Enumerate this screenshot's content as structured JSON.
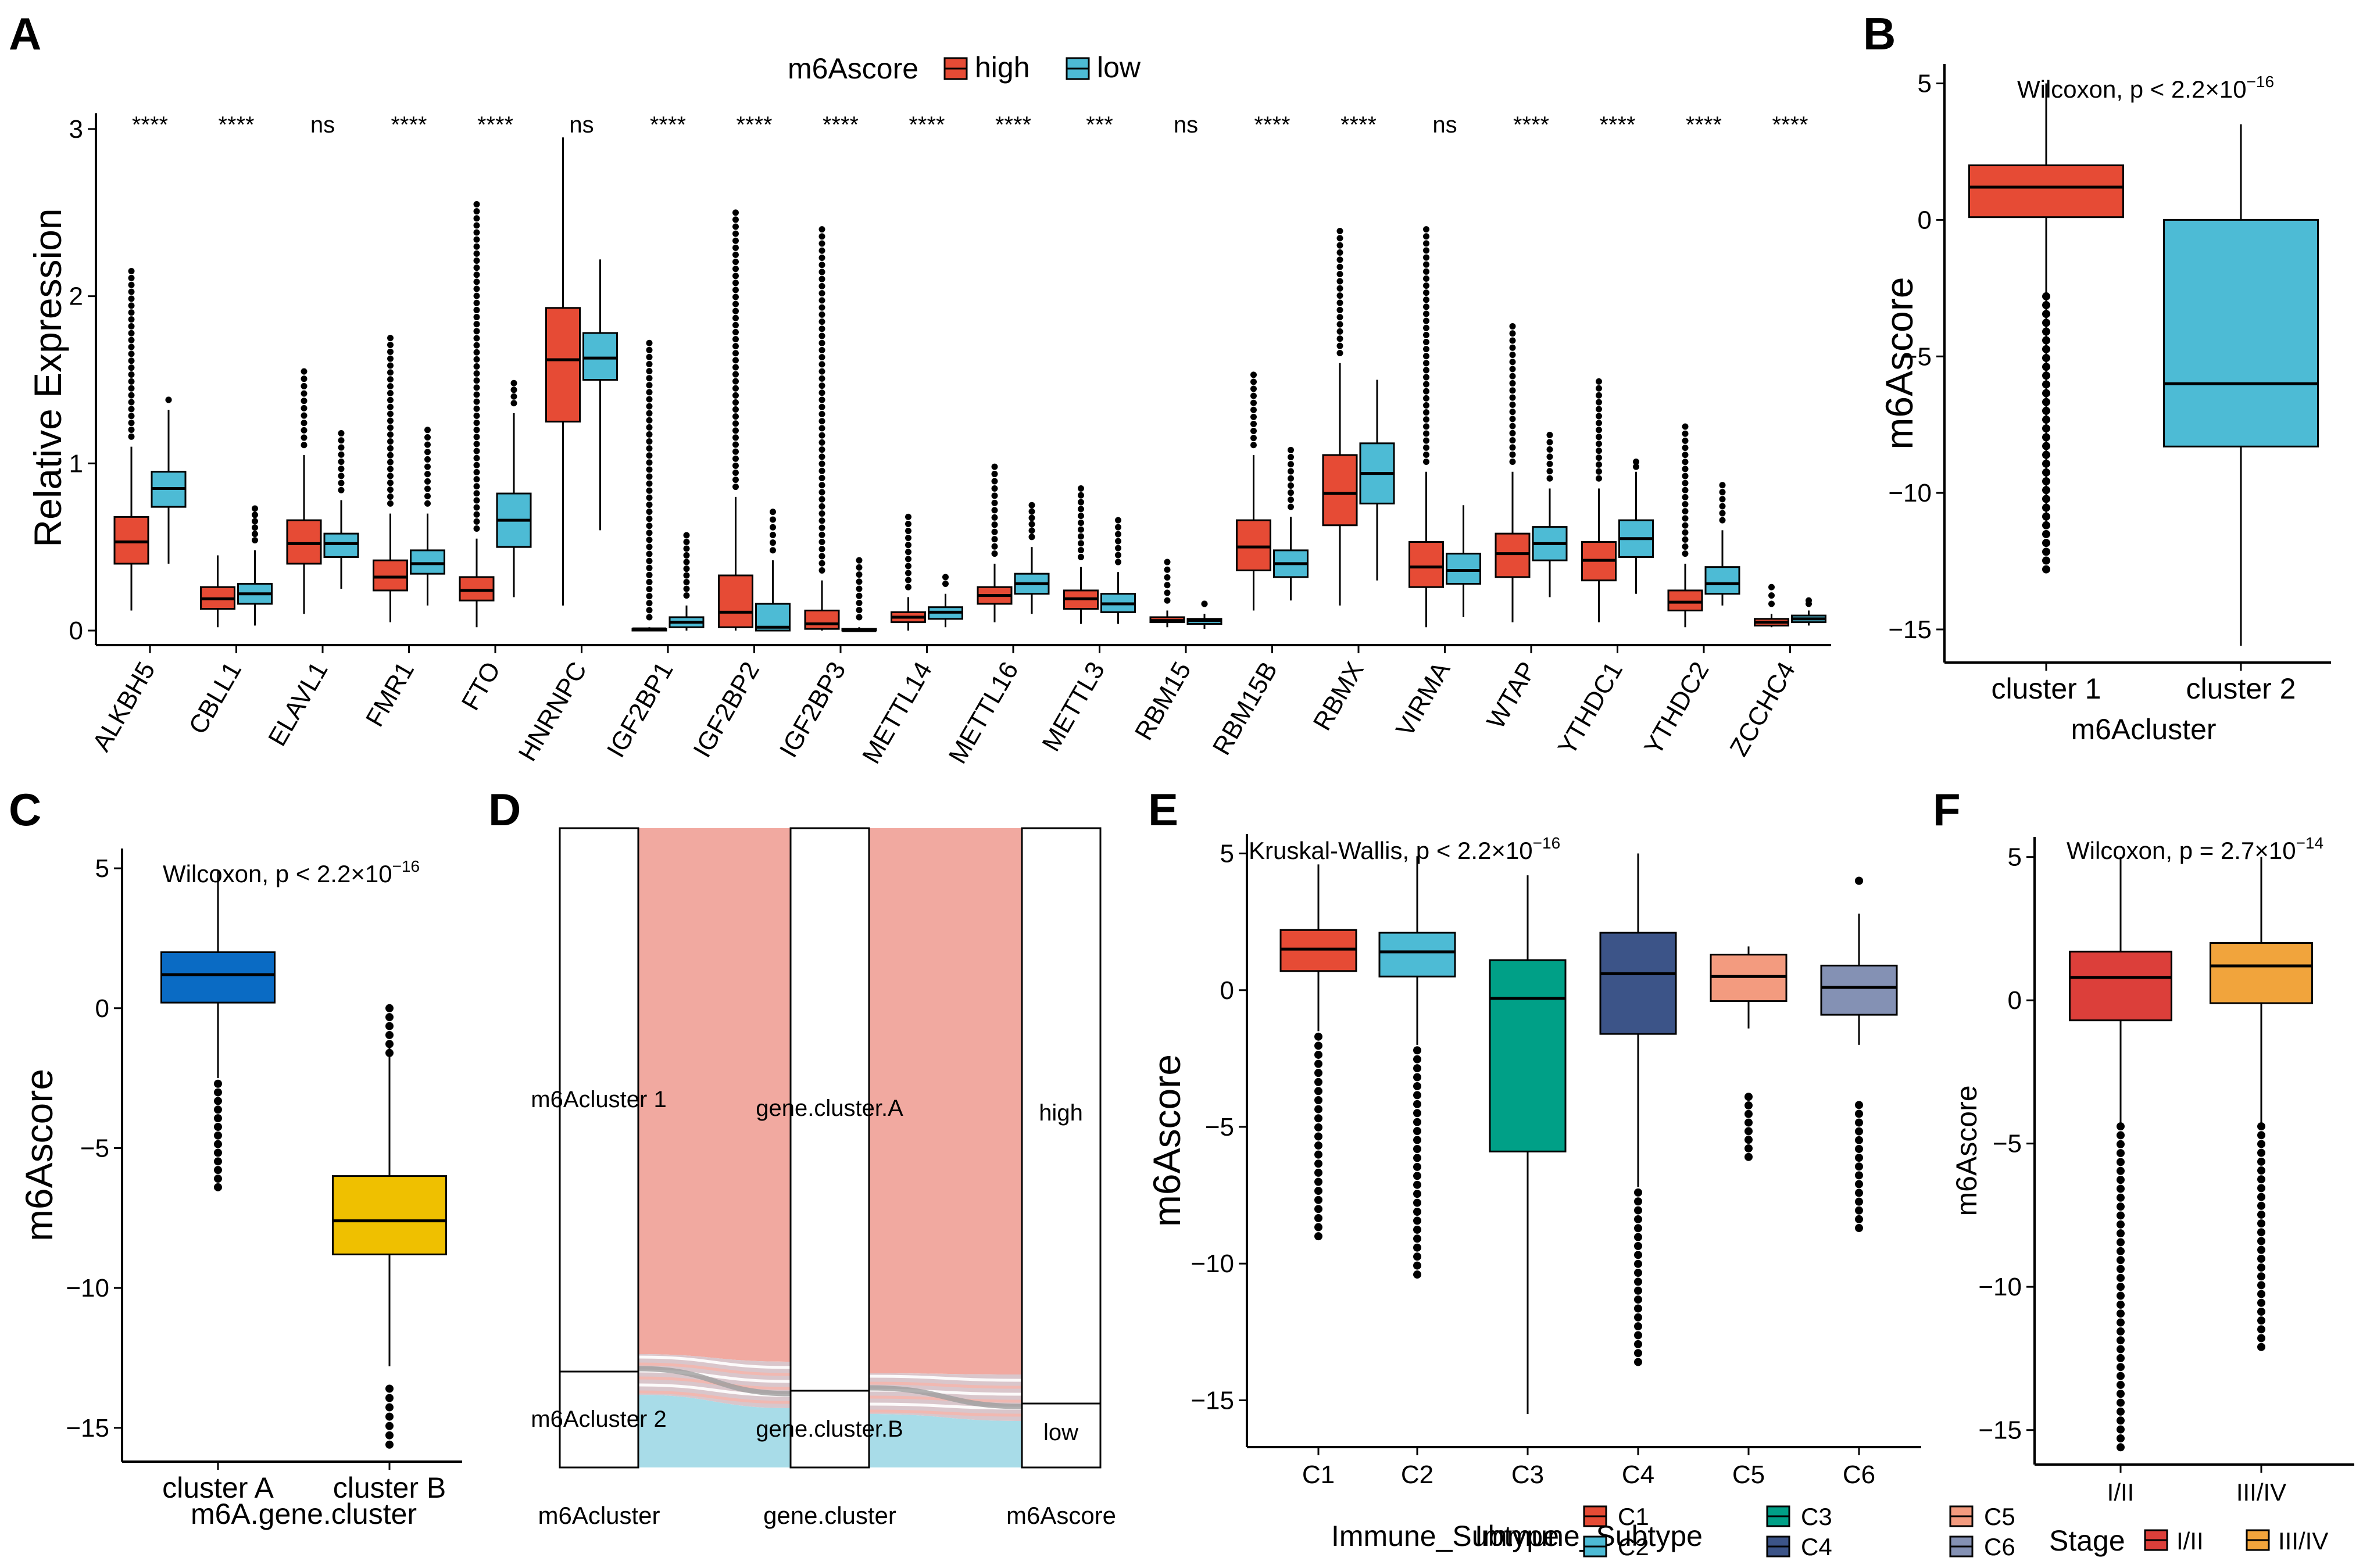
{
  "panel_labels": [
    "A",
    "B",
    "C",
    "D",
    "E",
    "F"
  ],
  "chart_data": [
    {
      "panel": "A",
      "type": "box",
      "legend_title": "m6Ascore",
      "legend": [
        {
          "name": "high",
          "color": "#E64B35"
        },
        {
          "name": "low",
          "color": "#4DBBD5"
        }
      ],
      "ylabel": "Relative Expression",
      "ylim": [
        0,
        3.0
      ],
      "yticks": [
        0,
        1,
        2,
        3
      ],
      "categories": [
        "ALKBH5",
        "CBLL1",
        "ELAVL1",
        "FMR1",
        "FTO",
        "HNRNPC",
        "IGF2BP1",
        "IGF2BP2",
        "IGF2BP3",
        "METTL14",
        "METTL16",
        "METTL3",
        "RBM15",
        "RBM15B",
        "RBMX",
        "VIRMA",
        "WTAP",
        "YTHDC1",
        "YTHDC2",
        "ZCCHC4"
      ],
      "significance": [
        "****",
        "****",
        "ns",
        "****",
        "****",
        "ns",
        "****",
        "****",
        "****",
        "****",
        "****",
        "***",
        "ns",
        "****",
        "****",
        "ns",
        "****",
        "****",
        "****",
        "****"
      ],
      "series": [
        {
          "name": "high",
          "boxes": [
            [
              0.12,
              0.4,
              0.53,
              0.68,
              1.1
            ],
            [
              0.02,
              0.13,
              0.19,
              0.26,
              0.45
            ],
            [
              0.1,
              0.4,
              0.52,
              0.66,
              1.05
            ],
            [
              0.05,
              0.24,
              0.32,
              0.42,
              0.7
            ],
            [
              0.02,
              0.18,
              0.24,
              0.32,
              0.55
            ],
            [
              0.15,
              1.25,
              1.62,
              1.93,
              2.95
            ],
            [
              0.0,
              0.0,
              0.01,
              0.01,
              0.02
            ],
            [
              0.0,
              0.02,
              0.11,
              0.33,
              0.8
            ],
            [
              0.0,
              0.01,
              0.04,
              0.12,
              0.3
            ],
            [
              0.0,
              0.05,
              0.08,
              0.11,
              0.2
            ],
            [
              0.05,
              0.16,
              0.21,
              0.26,
              0.4
            ],
            [
              0.04,
              0.13,
              0.19,
              0.24,
              0.38
            ],
            [
              0.02,
              0.05,
              0.06,
              0.08,
              0.12
            ],
            [
              0.12,
              0.36,
              0.5,
              0.66,
              1.05
            ],
            [
              0.15,
              0.63,
              0.82,
              1.05,
              1.6
            ],
            [
              0.02,
              0.26,
              0.38,
              0.53,
              0.95
            ],
            [
              0.05,
              0.32,
              0.46,
              0.58,
              0.95
            ],
            [
              0.05,
              0.3,
              0.42,
              0.53,
              0.85
            ],
            [
              0.02,
              0.12,
              0.17,
              0.24,
              0.4
            ],
            [
              0.02,
              0.03,
              0.05,
              0.07,
              0.1
            ]
          ],
          "outliers_top": [
            2.15,
            0,
            1.55,
            1.75,
            2.55,
            0,
            1.72,
            2.5,
            2.4,
            0.68,
            0.98,
            0.85,
            0.41,
            1.53,
            2.39,
            2.4,
            1.82,
            1.49,
            1.22,
            0.26
          ]
        },
        {
          "name": "low",
          "boxes": [
            [
              0.4,
              0.74,
              0.85,
              0.95,
              1.32
            ],
            [
              0.03,
              0.16,
              0.22,
              0.28,
              0.48
            ],
            [
              0.25,
              0.44,
              0.52,
              0.58,
              0.78
            ],
            [
              0.15,
              0.34,
              0.4,
              0.48,
              0.7
            ],
            [
              0.2,
              0.5,
              0.66,
              0.82,
              1.3
            ],
            [
              0.6,
              1.5,
              1.63,
              1.78,
              2.22
            ],
            [
              0.0,
              0.02,
              0.05,
              0.08,
              0.15
            ],
            [
              0.0,
              0.0,
              0.02,
              0.16,
              0.42
            ],
            [
              0.0,
              0.0,
              0.0,
              0.01,
              0.02
            ],
            [
              0.02,
              0.07,
              0.11,
              0.14,
              0.22
            ],
            [
              0.1,
              0.22,
              0.28,
              0.34,
              0.5
            ],
            [
              0.04,
              0.11,
              0.16,
              0.22,
              0.35
            ],
            [
              0.01,
              0.04,
              0.06,
              0.07,
              0.1
            ],
            [
              0.18,
              0.32,
              0.4,
              0.48,
              0.68
            ],
            [
              0.3,
              0.76,
              0.94,
              1.12,
              1.5
            ],
            [
              0.08,
              0.28,
              0.36,
              0.46,
              0.75
            ],
            [
              0.2,
              0.42,
              0.52,
              0.62,
              0.85
            ],
            [
              0.22,
              0.44,
              0.55,
              0.66,
              0.95
            ],
            [
              0.15,
              0.22,
              0.28,
              0.38,
              0.6
            ],
            [
              0.03,
              0.05,
              0.07,
              0.09,
              0.12
            ]
          ],
          "outliers_top": [
            1.38,
            0.73,
            1.18,
            1.2,
            1.48,
            2.22,
            0.57,
            0.71,
            0.42,
            0.32,
            0.75,
            0.66,
            0.16,
            1.08,
            0,
            0.7,
            1.17,
            0.98,
            0.87,
            0.16
          ]
        }
      ]
    },
    {
      "panel": "B",
      "type": "box",
      "stat": "Wilcoxon, p < 2.2×10",
      "stat_exp": "−16",
      "xlabel": "m6Acluster",
      "ylabel": "m6Ascore",
      "ylim": [
        -16,
        5.5
      ],
      "yticks": [
        5,
        0,
        -5,
        -10,
        -15
      ],
      "categories": [
        "cluster 1",
        "cluster 2"
      ],
      "colors": [
        "#E64B35",
        "#4DBBD5"
      ],
      "boxes": [
        [
          -11.2,
          0.1,
          1.2,
          2.0,
          5.0
        ],
        [
          -15.6,
          -8.3,
          -6.0,
          0.0,
          3.5
        ]
      ],
      "outliers_bottom": [
        [
          -2.8,
          -12.8
        ],
        null
      ]
    },
    {
      "panel": "C",
      "type": "box",
      "stat": "Wilcoxon, p < 2.2×10",
      "stat_exp": "−16",
      "xlabel": "m6A.gene.cluster",
      "ylabel": "m6Ascore",
      "ylim": [
        -16,
        5.5
      ],
      "yticks": [
        5,
        0,
        -5,
        -10,
        -15
      ],
      "categories": [
        "cluster A",
        "cluster B"
      ],
      "colors": [
        "#0A6BC4",
        "#EFC000"
      ],
      "boxes": [
        [
          -2.5,
          0.2,
          1.2,
          2.0,
          4.9
        ],
        [
          -12.8,
          -8.8,
          -7.6,
          -6.0,
          -1.4
        ]
      ],
      "outliers_top": [
        null,
        [
          0.0,
          -1.6
        ]
      ],
      "outliers_bottom": [
        [
          -2.7,
          -6.4
        ],
        [
          -13.6,
          -15.6
        ]
      ]
    },
    {
      "panel": "D",
      "type": "alluvial",
      "axes": [
        "m6Acluster",
        "gene.cluster",
        "m6Ascore"
      ],
      "strata": [
        [
          "m6Acluster 1",
          "m6Acluster 2"
        ],
        [
          "gene.cluster.A",
          "gene.cluster.B"
        ],
        [
          "high",
          "low"
        ]
      ],
      "proportions": [
        [
          0.85,
          0.15
        ],
        [
          0.88,
          0.12
        ],
        [
          0.9,
          0.1
        ]
      ],
      "flow_colors": {
        "high": "#F1A9A0",
        "low": "#A8DCE8"
      }
    },
    {
      "panel": "E",
      "type": "box",
      "stat": "Kruskal-Wallis, p < 2.2×10",
      "stat_exp": "−16",
      "xlabel": "Immune_Subtype",
      "ylabel": "m6Ascore",
      "ylim": [
        -16.5,
        5.5
      ],
      "yticks": [
        5,
        0,
        -5,
        -10,
        -15
      ],
      "categories": [
        "C1",
        "C2",
        "C3",
        "C4",
        "C5",
        "C6"
      ],
      "colors": [
        "#E64B35",
        "#4DBBD5",
        "#00A087",
        "#3C5488",
        "#F39B7F",
        "#8491B4"
      ],
      "boxes": [
        [
          -1.5,
          0.7,
          1.5,
          2.2,
          4.6
        ],
        [
          -2.0,
          0.5,
          1.4,
          2.1,
          4.9
        ],
        [
          -15.5,
          -5.9,
          -0.3,
          1.1,
          4.2
        ],
        [
          -7.2,
          -1.6,
          0.6,
          2.1,
          5.0
        ],
        [
          -1.4,
          -0.4,
          0.5,
          1.3,
          1.6
        ],
        [
          -2.0,
          -0.9,
          0.1,
          0.9,
          2.8
        ]
      ],
      "outliers_top": [
        null,
        null,
        null,
        null,
        null,
        [
          4.0
        ]
      ],
      "outliers_bottom": [
        [
          -1.7,
          -9.0
        ],
        [
          -2.2,
          -10.4
        ],
        null,
        [
          -7.4,
          -13.6
        ],
        [
          -3.9,
          -6.1
        ],
        [
          -4.2,
          -8.7
        ]
      ],
      "legend": [
        {
          "name": "C1"
        },
        {
          "name": "C2"
        },
        {
          "name": "C3"
        },
        {
          "name": "C4"
        },
        {
          "name": "C5"
        },
        {
          "name": "C6"
        }
      ]
    },
    {
      "panel": "F",
      "type": "box",
      "stat": "Wilcoxon, p = 2.7×10",
      "stat_exp": "−14",
      "xlabel": "",
      "ylabel": "m6Ascore",
      "ylim": [
        -16,
        5.5
      ],
      "yticks": [
        5,
        0,
        -5,
        -10,
        -15
      ],
      "categories": [
        "I/II",
        "III/IV"
      ],
      "colors": [
        "#DC3F3A",
        "#F1A43C"
      ],
      "boxes": [
        [
          -4.3,
          -0.7,
          0.8,
          1.7,
          5.0
        ],
        [
          -4.3,
          -0.1,
          1.2,
          2.0,
          5.0
        ]
      ],
      "outliers_bottom": [
        [
          -4.4,
          -15.6
        ],
        [
          -4.4,
          -12.1
        ]
      ],
      "legend_title": "Stage",
      "legend": [
        {
          "name": "I/II"
        },
        {
          "name": "III/IV"
        }
      ]
    }
  ]
}
